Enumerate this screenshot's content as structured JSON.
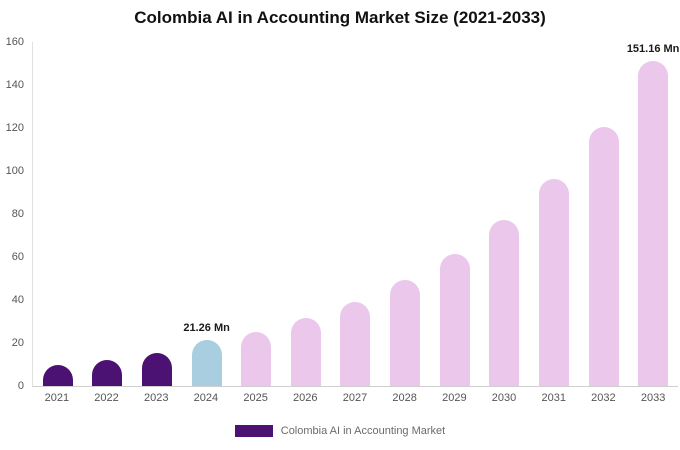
{
  "title": "Colombia AI in Accounting Market Size (2021-2033)",
  "legend": {
    "label": "Colombia AI in Accounting Market",
    "swatch_color": "#4b1273"
  },
  "colors": {
    "dark_purple": "#4b1273",
    "highlight_blue": "#a8cee0",
    "light_pink": "#eac7eb",
    "axis_text": "#555555",
    "annotation_text": "#1a1a1a"
  },
  "chart_data": {
    "type": "bar",
    "title": "Colombia AI in Accounting Market Size (2021-2033)",
    "xlabel": "",
    "ylabel": "",
    "categories": [
      "2021",
      "2022",
      "2023",
      "2024",
      "2025",
      "2026",
      "2027",
      "2028",
      "2029",
      "2030",
      "2031",
      "2032",
      "2033"
    ],
    "values": [
      9.8,
      12.1,
      15.5,
      21.26,
      25.3,
      31.4,
      39.2,
      49.1,
      61.5,
      77.0,
      96.3,
      120.6,
      151.16
    ],
    "bar_colors": [
      "#4b1273",
      "#4b1273",
      "#4b1273",
      "#a8cee0",
      "#eac7eb",
      "#eac7eb",
      "#eac7eb",
      "#eac7eb",
      "#eac7eb",
      "#eac7eb",
      "#eac7eb",
      "#eac7eb",
      "#eac7eb"
    ],
    "annotations": [
      {
        "index": 3,
        "text": "21.26 Mn"
      },
      {
        "index": 12,
        "text": "151.16 Mn"
      }
    ],
    "ylim": [
      0,
      160
    ],
    "yticks": [
      0,
      20,
      40,
      60,
      80,
      100,
      120,
      140,
      160
    ],
    "grid": false,
    "legend_position": "bottom",
    "legend_entries": [
      "Colombia AI in Accounting Market"
    ]
  }
}
